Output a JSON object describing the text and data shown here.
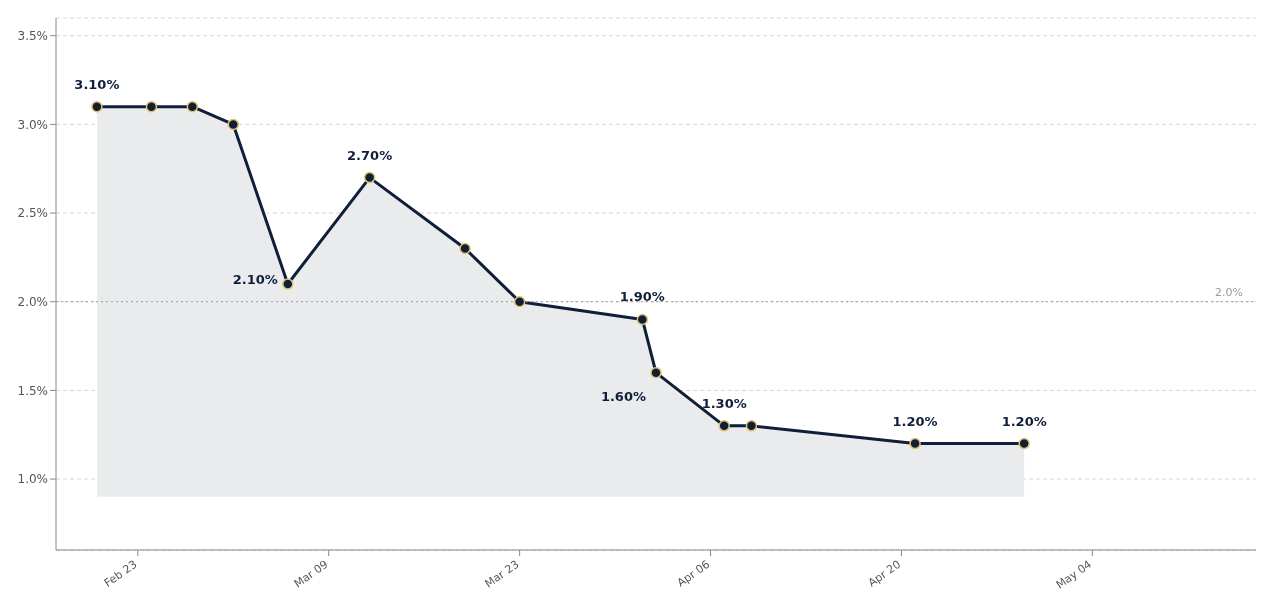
{
  "chart_data": {
    "type": "line",
    "x": [
      "--02-20",
      "--02-24",
      "--02-27",
      "--03-02",
      "--03-06",
      "--03-12",
      "--03-19",
      "--03-23",
      "--04-01",
      "--04-02",
      "--04-07",
      "--04-09",
      "--04-21",
      "--04-29"
    ],
    "series": [
      {
        "color": "#0f1f3a",
        "values": [
          3.1,
          3.1,
          3.1,
          3.0,
          2.1,
          2.7,
          2.3,
          2.0,
          1.9,
          1.6,
          1.3,
          1.3,
          1.2,
          1.2
        ],
        "lower": [
          0.9,
          0.9,
          0.9,
          0.9,
          0.9,
          0.9,
          0.9,
          0.9,
          0.9,
          0.9,
          0.9,
          0.9,
          0.9,
          0.9
        ],
        "upper": [
          3.1,
          3.1,
          3.1,
          3.0,
          2.1,
          2.7,
          2.3,
          2.0,
          1.9,
          1.6,
          1.3,
          1.3,
          1.2,
          1.2
        ],
        "value_labels": [
          "3.10%",
          null,
          null,
          null,
          "2.10%",
          "2.70%",
          null,
          null,
          "1.90%",
          "1.60%",
          "1.30%",
          null,
          "1.20%",
          "1.20%"
        ]
      }
    ],
    "xlim": [
      "--02-17",
      "--05-16"
    ],
    "xticks": [
      {
        "value": "--02-23",
        "label": "Feb 23"
      },
      {
        "value": "--03-09",
        "label": "Mar 09"
      },
      {
        "value": "--03-23",
        "label": "Mar 23"
      },
      {
        "value": "--04-06",
        "label": "Apr 06"
      },
      {
        "value": "--04-20",
        "label": "Apr 20"
      },
      {
        "value": "--05-04",
        "label": "May 04"
      }
    ],
    "ylim": [
      0.6,
      3.6
    ],
    "yticks": [
      {
        "value": 1,
        "label": "1.0%"
      },
      {
        "value": 1.5,
        "label": "1.5%"
      },
      {
        "value": 2,
        "label": "2.0%"
      },
      {
        "value": 2.5,
        "label": "2.5%"
      },
      {
        "value": 3,
        "label": "3.0%"
      },
      {
        "value": 3.5,
        "label": "3.5%"
      }
    ],
    "grid": "y",
    "marker": "circle",
    "line_style": "solid",
    "ref_lines": [
      {
        "axis": "y",
        "value": 2,
        "label": "2.0%",
        "color": "#9a9a9a",
        "line_style": "dotted"
      }
    ]
  }
}
